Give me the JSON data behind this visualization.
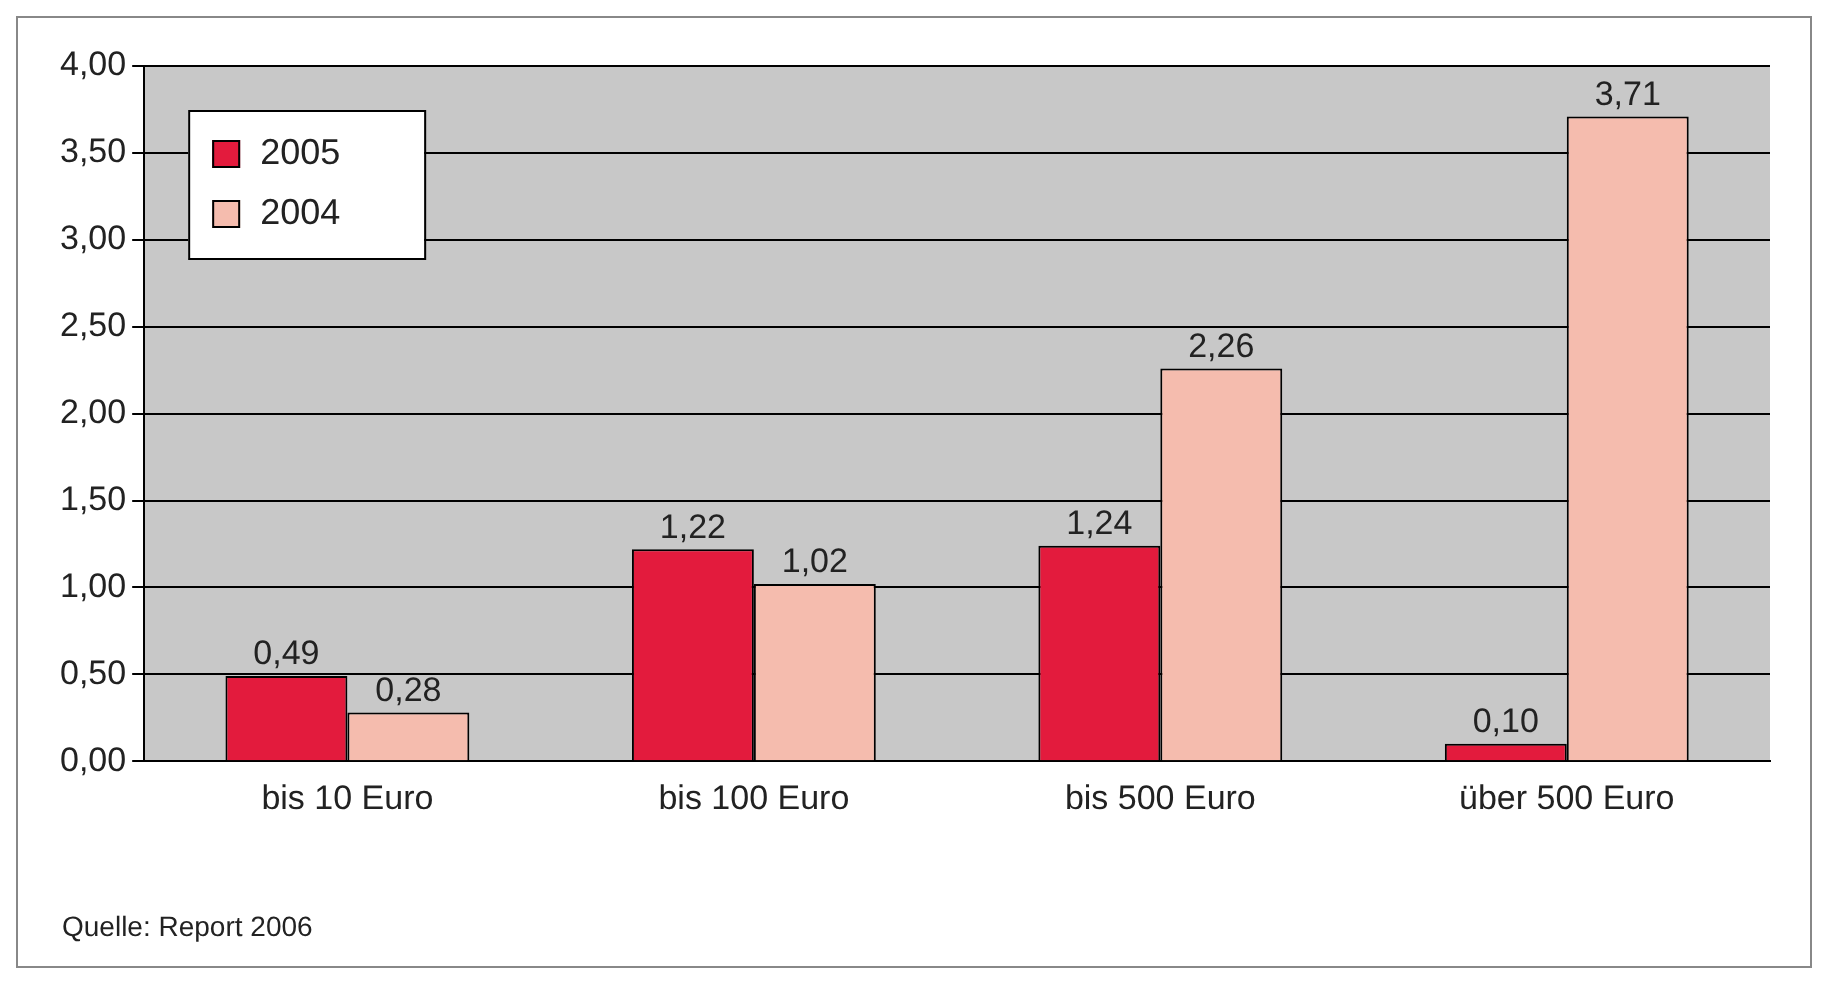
{
  "chart_data": {
    "type": "bar",
    "categories": [
      "bis 10 Euro",
      "bis 100 Euro",
      "bis 500 Euro",
      "über 500 Euro"
    ],
    "series": [
      {
        "name": "2005",
        "color": "#e31b3d",
        "values": [
          0.49,
          1.22,
          1.24,
          0.1
        ],
        "value_labels": [
          "0,49",
          "1,22",
          "1,24",
          "0,10"
        ]
      },
      {
        "name": "2004",
        "color": "#f5bcae",
        "values": [
          0.28,
          1.02,
          2.26,
          3.71
        ],
        "value_labels": [
          "0,28",
          "1,02",
          "2,26",
          "3,71"
        ]
      }
    ],
    "ylim": [
      0,
      4
    ],
    "yticks": [
      {
        "value": 0,
        "label": "0,00"
      },
      {
        "value": 0.5,
        "label": "0,50"
      },
      {
        "value": 1,
        "label": "1,00"
      },
      {
        "value": 1.5,
        "label": "1,50"
      },
      {
        "value": 2,
        "label": "2,00"
      },
      {
        "value": 2.5,
        "label": "2,50"
      },
      {
        "value": 3,
        "label": "3,00"
      },
      {
        "value": 3.5,
        "label": "3,50"
      },
      {
        "value": 4,
        "label": "4,00"
      }
    ],
    "grid": "y",
    "legend": "top left",
    "annotations": [
      "Quelle: Report 2006"
    ]
  }
}
